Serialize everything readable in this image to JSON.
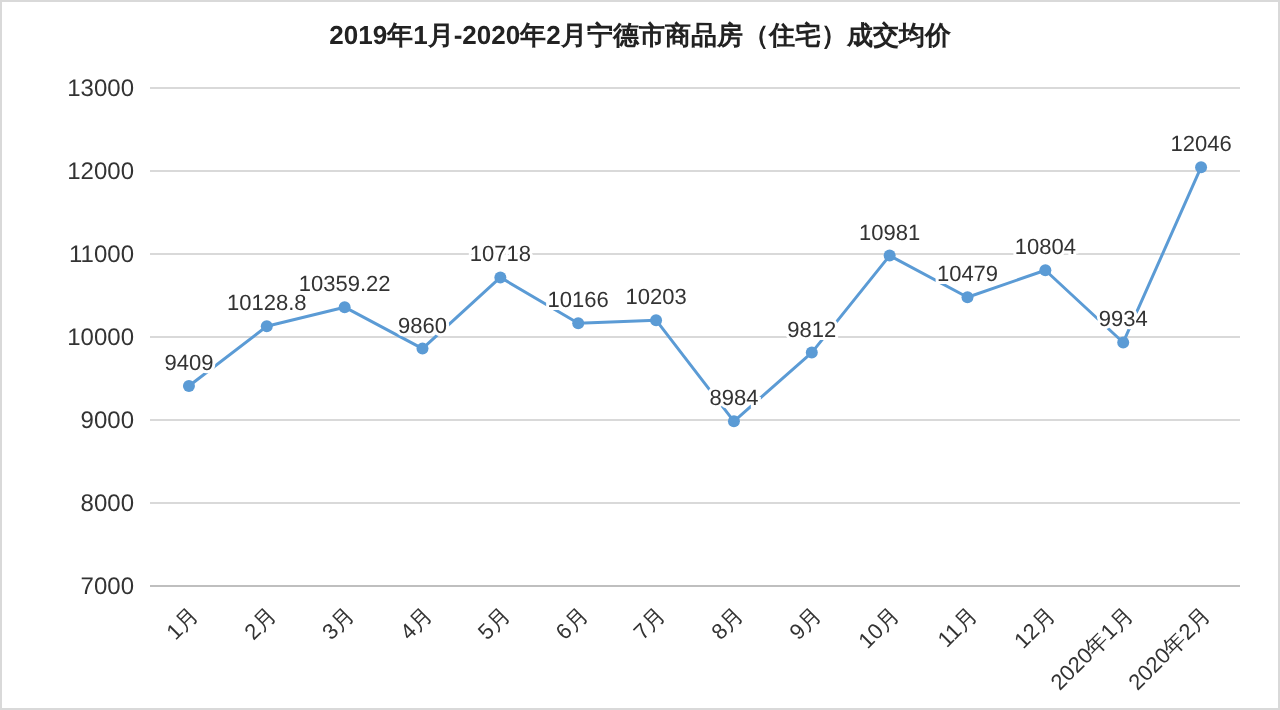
{
  "chart_data": {
    "type": "line",
    "title": "2019年1月-2020年2月宁德市商品房（住宅）成交均价",
    "categories": [
      "1月",
      "2月",
      "3月",
      "4月",
      "5月",
      "6月",
      "7月",
      "8月",
      "9月",
      "10月",
      "11月",
      "12月",
      "2020年1月",
      "2020年2月"
    ],
    "series": [
      {
        "color": "#5b9bd5",
        "values": [
          9409,
          10128.8,
          10359.22,
          9860,
          10718,
          10166,
          10203,
          8984,
          9812,
          10981,
          10479,
          10804,
          9934,
          12046
        ]
      }
    ],
    "ylim": [
      7000,
      13000
    ],
    "yticks": [
      7000,
      8000,
      9000,
      10000,
      11000,
      12000,
      13000
    ],
    "grid": "y",
    "marker": "circle",
    "data_labels": true
  }
}
